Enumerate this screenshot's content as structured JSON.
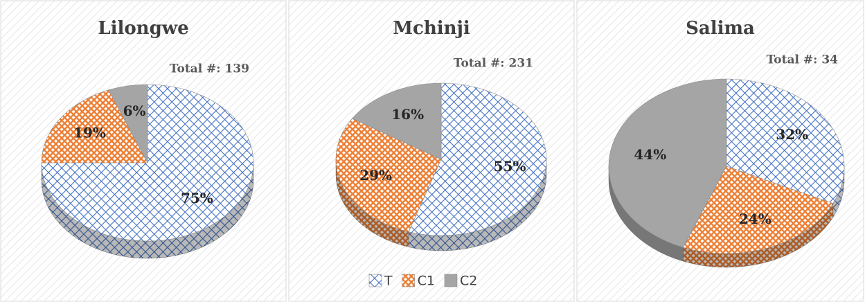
{
  "chart_data": [
    {
      "type": "pie",
      "title": "Lilongwe",
      "annotation": "Total #: 139",
      "categories": [
        "T",
        "C1",
        "C2"
      ],
      "values": [
        75,
        19,
        6
      ],
      "value_labels": [
        "75%",
        "19%",
        "6%"
      ],
      "colors": [
        "#4472c4",
        "#ed7d31",
        "#a5a5a5"
      ]
    },
    {
      "type": "pie",
      "title": "Mchinji",
      "annotation": "Total #: 231",
      "categories": [
        "T",
        "C1",
        "C2"
      ],
      "values": [
        55,
        29,
        16
      ],
      "value_labels": [
        "55%",
        "29%",
        "16%"
      ],
      "colors": [
        "#4472c4",
        "#ed7d31",
        "#a5a5a5"
      ],
      "legend": "bottom"
    },
    {
      "type": "pie",
      "title": "Salima",
      "annotation": "Total #: 34",
      "categories": [
        "T",
        "C1",
        "C2"
      ],
      "values": [
        32,
        24,
        44
      ],
      "value_labels": [
        "32%",
        "24%",
        "44%"
      ],
      "colors": [
        "#4472c4",
        "#ed7d31",
        "#a5a5a5"
      ]
    }
  ]
}
